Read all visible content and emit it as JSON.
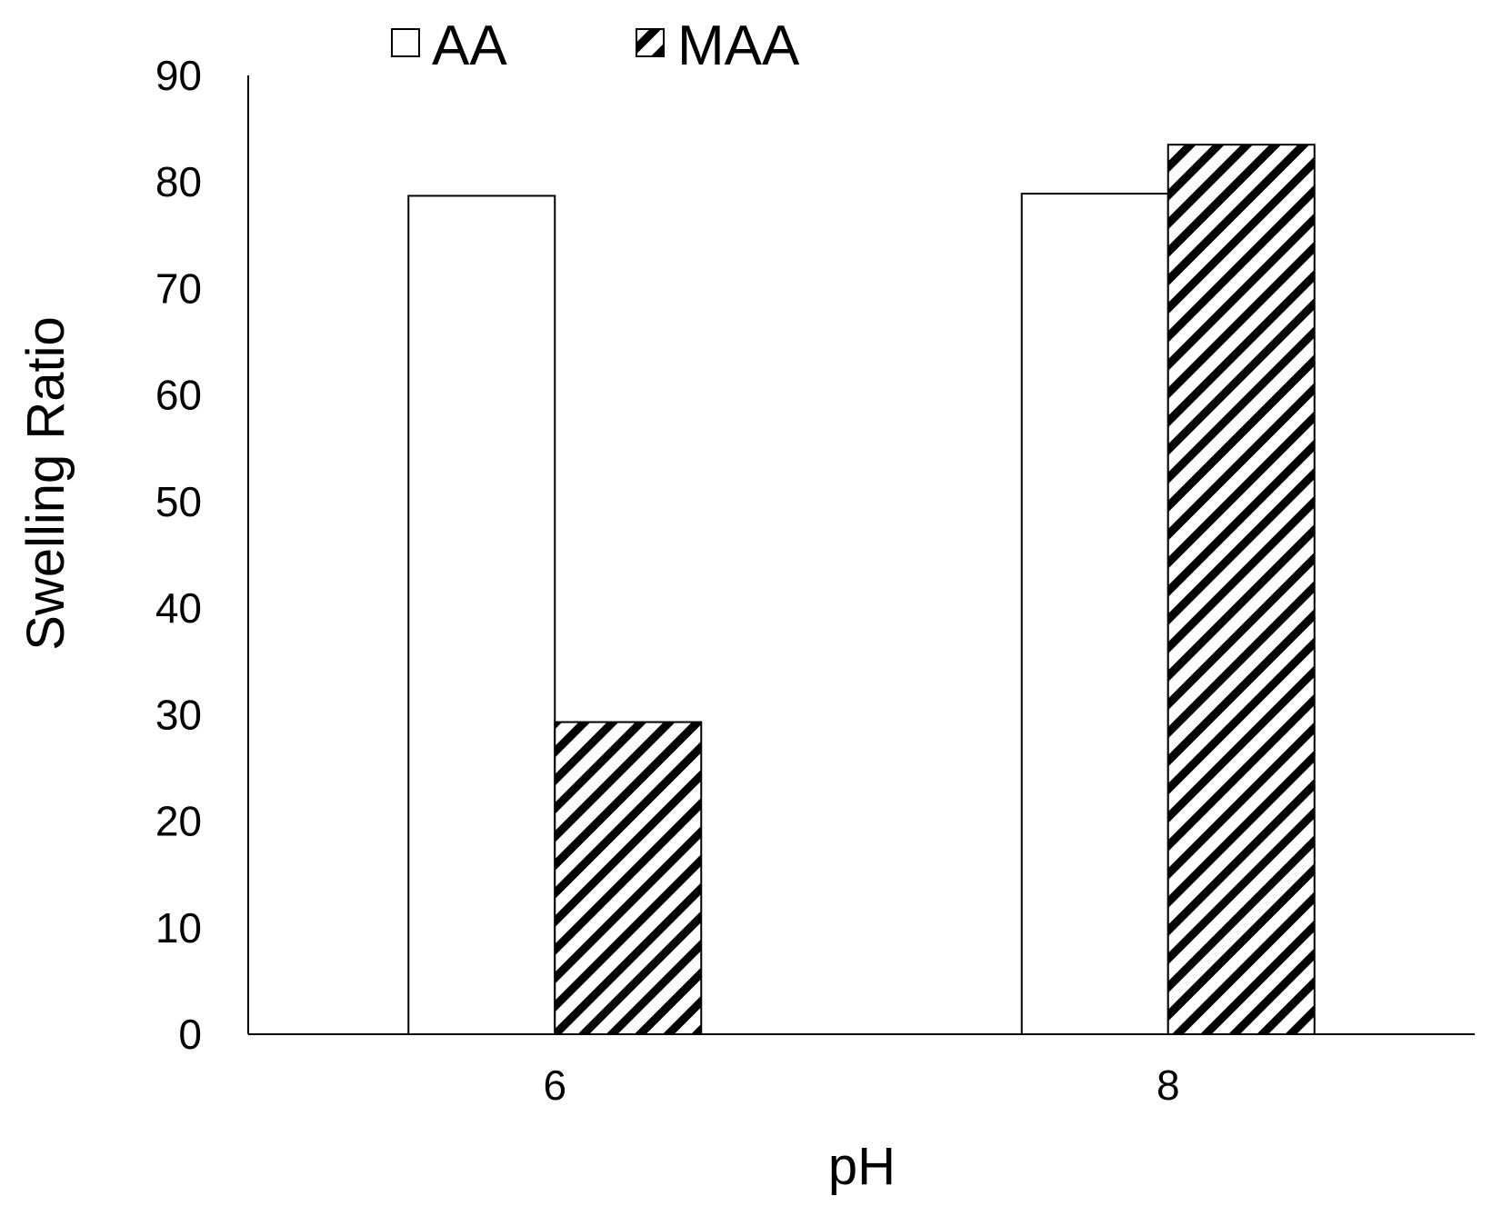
{
  "chart_data": {
    "type": "bar",
    "title": "",
    "xlabel": "pH",
    "ylabel": "Swelling Ratio",
    "categories": [
      "6",
      "8"
    ],
    "series": [
      {
        "name": "AA",
        "values": [
          78.7,
          78.9
        ],
        "fill": "#ffffff",
        "pattern": "none"
      },
      {
        "name": "MAA",
        "values": [
          29.3,
          83.5
        ],
        "fill": "#000000",
        "pattern": "diagonal-hatch"
      }
    ],
    "ylim": [
      0,
      90
    ],
    "yticks": [
      "0",
      "10",
      "20",
      "30",
      "40",
      "50",
      "60",
      "70",
      "80",
      "90"
    ],
    "grid": false,
    "legend_position": "top"
  },
  "colors": {
    "bar_outline": "#000000",
    "axis": "#000000",
    "background": "#ffffff"
  }
}
